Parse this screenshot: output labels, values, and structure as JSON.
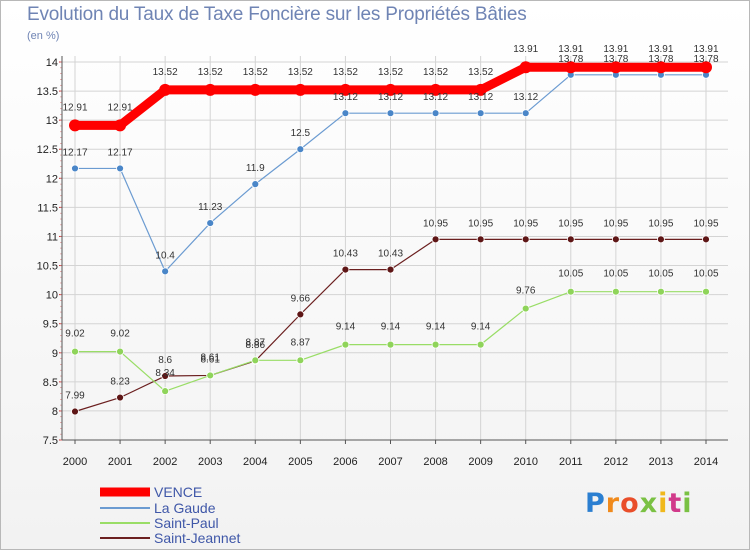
{
  "chart_data": {
    "type": "line",
    "title": "Evolution du Taux de Taxe Foncière sur les Propriétés Bâties",
    "ylabel": "(en %)",
    "xlabel": "",
    "ylim": [
      7.5,
      14
    ],
    "yticks": [
      "7.5",
      "8",
      "8.5",
      "9",
      "9.5",
      "10",
      "10.5",
      "11",
      "11.5",
      "12",
      "12.5",
      "13",
      "13.5",
      "14"
    ],
    "categories": [
      "2000",
      "2001",
      "2002",
      "2003",
      "2004",
      "2005",
      "2006",
      "2007",
      "2008",
      "2009",
      "2010",
      "2011",
      "2012",
      "2013",
      "2014"
    ],
    "series": [
      {
        "name": "VENCE",
        "color": "#ff0000",
        "values": [
          12.91,
          12.91,
          13.52,
          13.52,
          13.52,
          13.52,
          13.52,
          13.52,
          13.52,
          13.52,
          13.91,
          13.91,
          13.91,
          13.91,
          13.91
        ],
        "labels": [
          "12.91",
          "12.91",
          "13.52",
          "13.52",
          "13.52",
          "13.52",
          "13.52",
          "13.52",
          "13.52",
          "13.52",
          "13.91",
          "13.91",
          "13.91",
          "13.91",
          "13.91"
        ]
      },
      {
        "name": "La Gaude",
        "color": "#6b9bd1",
        "values": [
          12.17,
          12.17,
          10.4,
          11.23,
          11.9,
          12.5,
          13.12,
          13.12,
          13.12,
          13.12,
          13.12,
          13.78,
          13.78,
          13.78,
          13.78
        ],
        "labels": [
          "12.17",
          "12.17",
          "10.4",
          "11.23",
          "11.9",
          "12.5",
          "13.12",
          "13.12",
          "13.12",
          "13.12",
          "13.12",
          "13.78",
          "13.78",
          "13.78",
          "13.78"
        ]
      },
      {
        "name": "Saint-Paul",
        "color": "#99dd66",
        "values": [
          9.02,
          9.02,
          8.34,
          8.61,
          8.87,
          8.87,
          9.14,
          9.14,
          9.14,
          9.14,
          9.76,
          10.05,
          10.05,
          10.05,
          10.05
        ],
        "labels": [
          "9.02",
          "9.02",
          "8.34",
          "8.61",
          "8.87",
          "8.87",
          "9.14",
          "9.14",
          "9.14",
          "9.14",
          "9.76",
          "10.05",
          "10.05",
          "10.05",
          "10.05"
        ]
      },
      {
        "name": "Saint-Jeannet",
        "color": "#6b1f1f",
        "values": [
          7.99,
          8.23,
          8.6,
          8.61,
          8.86,
          9.66,
          10.43,
          10.43,
          10.95,
          10.95,
          10.95,
          10.95,
          10.95,
          10.95,
          10.95
        ],
        "labels": [
          "7.99",
          "8.23",
          "8.6",
          "8.61",
          "8.86",
          "9.66",
          "10.43",
          "10.43",
          "10.95",
          "10.95",
          "10.95",
          "10.95",
          "10.95",
          "10.95",
          "10.95"
        ]
      }
    ],
    "legend_position": "bottom-left"
  },
  "logo": {
    "letters": [
      "P",
      "r",
      "o",
      "x",
      "i",
      "t",
      "i"
    ],
    "colors": [
      "#2b7fd1",
      "#f08a1c",
      "#e94e2a",
      "#7ac143",
      "#f0b81c",
      "#d13a8a",
      "#7ac143"
    ]
  }
}
